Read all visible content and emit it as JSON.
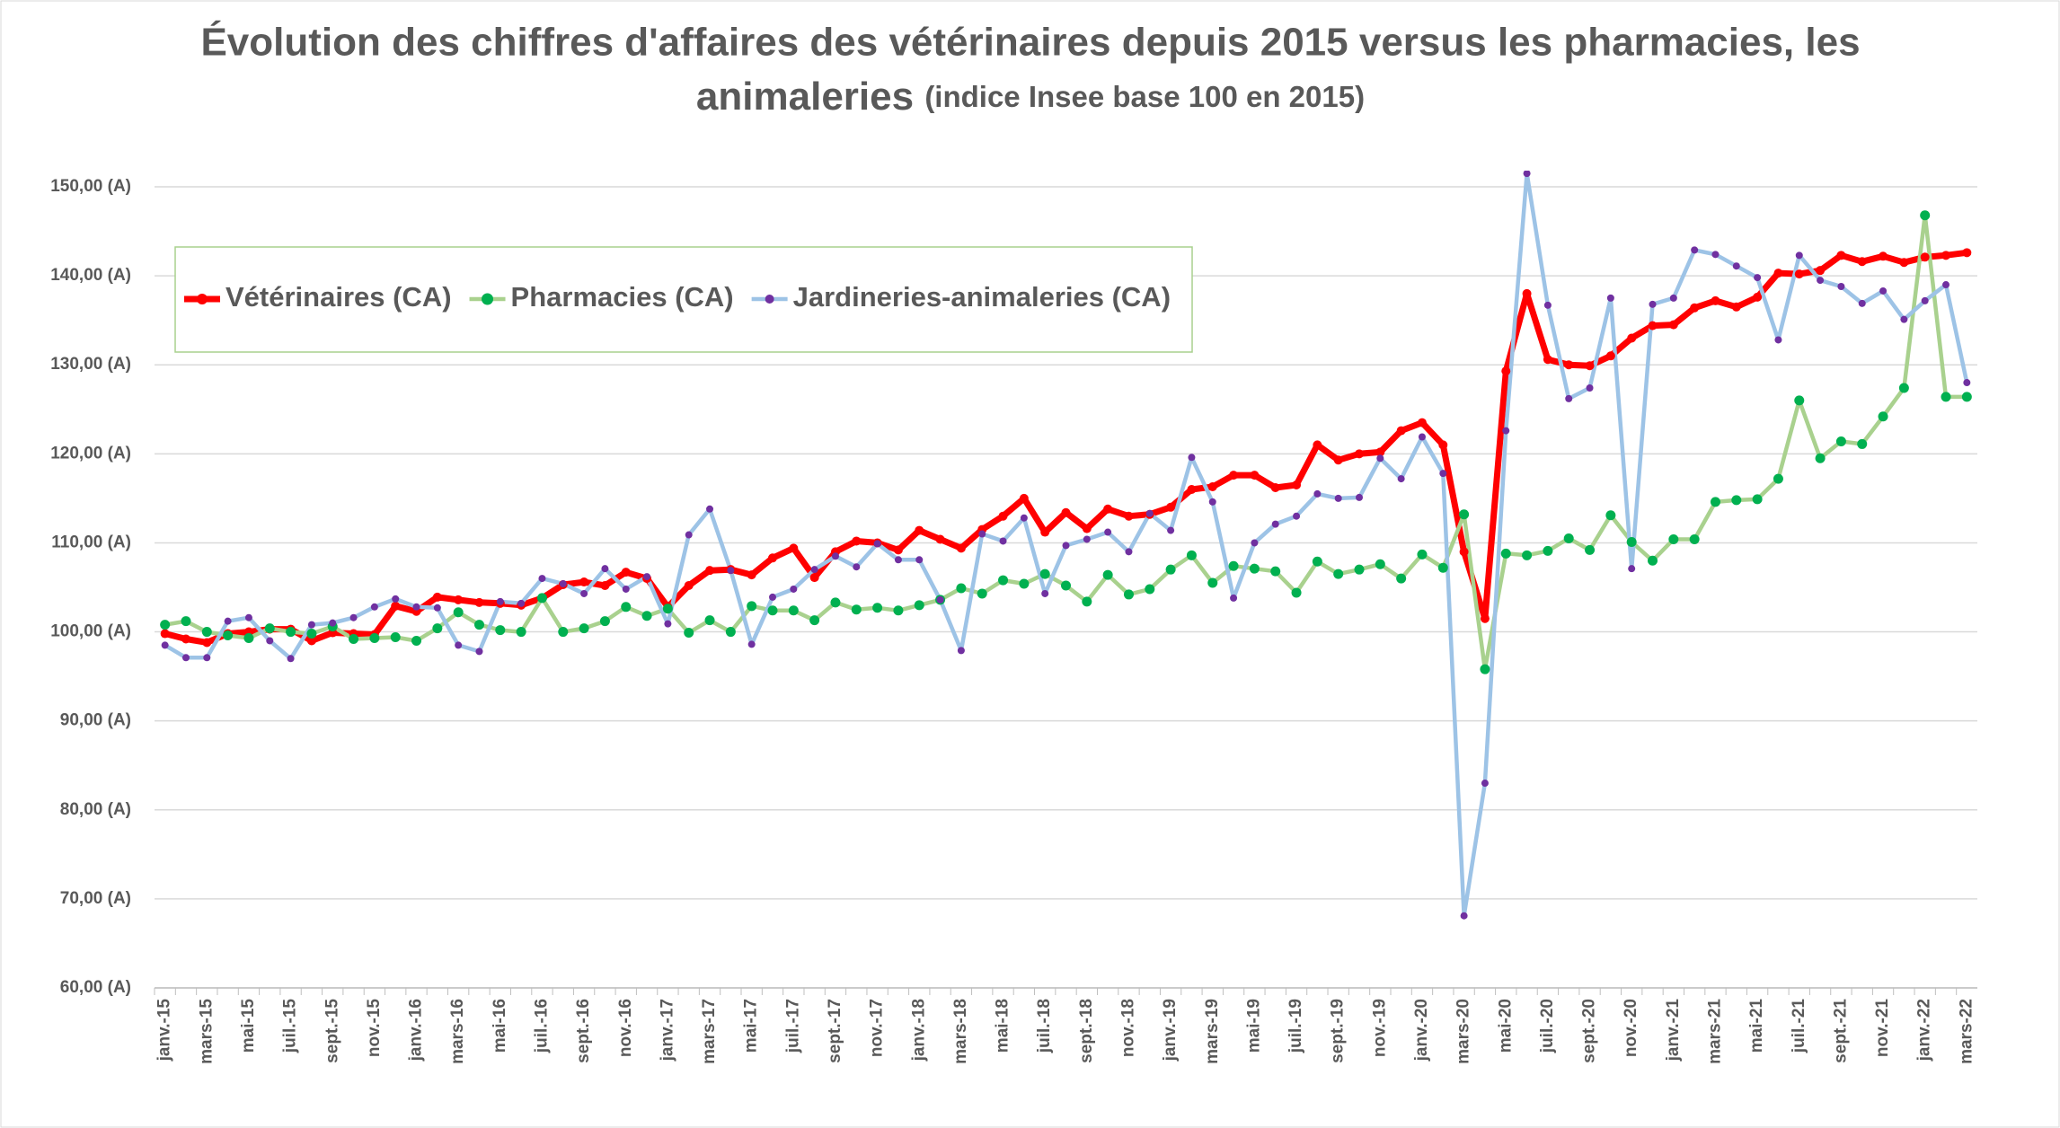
{
  "chart_data": {
    "type": "line",
    "title": [
      "Évolution des chiffres d'affaires des vétérinaires depuis 2015 versus les pharmacies, les",
      "animaleries"
    ],
    "subtitle": "(indice Insee base 100 en 2015)",
    "categories": [
      "janv.-15",
      null,
      "mars-15",
      null,
      "mai-15",
      null,
      "juil.-15",
      null,
      "sept.-15",
      null,
      "nov.-15",
      null,
      "janv.-16",
      null,
      "mars-16",
      null,
      "mai-16",
      null,
      "juil.-16",
      null,
      "sept.-16",
      null,
      "nov.-16",
      null,
      "janv.-17",
      null,
      "mars-17",
      null,
      "mai-17",
      null,
      "juil.-17",
      null,
      "sept.-17",
      null,
      "nov.-17",
      null,
      "janv.-18",
      null,
      "mars-18",
      null,
      "mai-18",
      null,
      "juil.-18",
      null,
      "sept.-18",
      null,
      "nov.-18",
      null,
      "janv.-19",
      null,
      "mars-19",
      null,
      "mai-19",
      null,
      "juil.-19",
      null,
      "sept.-19",
      null,
      "nov.-19",
      null,
      "janv.-20",
      null,
      "mars-20",
      null,
      "mai-20",
      null,
      "juil.-20",
      null,
      "sept.-20",
      null,
      "nov.-20",
      null,
      "janv.-21",
      null,
      "mars-21",
      null,
      "mai-21",
      null,
      "juil.-21",
      null,
      "sept.-21",
      null,
      "nov.-21",
      null,
      "janv.-22",
      null,
      "mars-22"
    ],
    "series": [
      {
        "name": "Vétérinaires (CA)",
        "color": "#ff0000",
        "marker_color": "#ff0000",
        "values": [
          99.8,
          99.2,
          98.8,
          99.8,
          100.0,
          100.3,
          100.3,
          99.0,
          99.9,
          99.8,
          99.7,
          102.9,
          102.3,
          103.9,
          103.6,
          103.3,
          103.2,
          103.0,
          103.8,
          105.3,
          105.6,
          105.2,
          106.7,
          106.0,
          102.8,
          105.2,
          106.9,
          107.0,
          106.4,
          108.3,
          109.4,
          106.1,
          109.0,
          110.2,
          110.0,
          109.2,
          111.4,
          110.4,
          109.4,
          111.5,
          113.0,
          115.0,
          111.2,
          113.4,
          111.6,
          113.8,
          113.0,
          113.2,
          114.0,
          116.0,
          116.3,
          117.6,
          117.6,
          116.2,
          116.5,
          121.0,
          119.3,
          120.0,
          120.2,
          122.6,
          123.5,
          121.0,
          109.0,
          101.5,
          129.3,
          138.0,
          130.6,
          130.0,
          129.9,
          131.0,
          133.0,
          134.4,
          134.5,
          136.4,
          137.2,
          136.5,
          137.6,
          140.3,
          140.2,
          140.6,
          142.3,
          141.6,
          142.2,
          141.5,
          142.1,
          142.3,
          142.6
        ]
      },
      {
        "name": "Pharmacies (CA)",
        "color": "#a9d18e",
        "marker_color": "#00b050",
        "values": [
          100.8,
          101.2,
          100.0,
          99.6,
          99.3,
          100.4,
          100.0,
          99.8,
          100.6,
          99.2,
          99.3,
          99.4,
          99.0,
          100.4,
          102.2,
          100.8,
          100.2,
          100.0,
          103.8,
          100.0,
          100.4,
          101.2,
          102.8,
          101.8,
          102.6,
          99.9,
          101.3,
          100.0,
          102.9,
          102.4,
          102.4,
          101.3,
          103.3,
          102.5,
          102.7,
          102.4,
          103.0,
          103.6,
          104.9,
          104.3,
          105.8,
          105.4,
          106.5,
          105.2,
          103.4,
          106.4,
          104.2,
          104.8,
          107.0,
          108.6,
          105.5,
          107.4,
          107.1,
          106.8,
          104.4,
          107.9,
          106.5,
          107.0,
          107.6,
          106.0,
          108.7,
          107.2,
          113.2,
          95.8,
          108.8,
          108.6,
          109.1,
          110.5,
          109.2,
          113.1,
          110.1,
          108.0,
          110.4,
          110.4,
          114.6,
          114.8,
          114.9,
          117.2,
          126.0,
          119.5,
          121.4,
          121.1,
          124.2,
          127.4,
          146.8,
          126.4,
          126.4
        ]
      },
      {
        "name": "Jardineries-animaleries (CA)",
        "color": "#9dc3e6",
        "marker_color": "#7030a0",
        "values": [
          98.5,
          97.1,
          97.1,
          101.2,
          101.6,
          99.0,
          97.0,
          100.8,
          101.0,
          101.6,
          102.8,
          103.7,
          102.8,
          102.7,
          98.5,
          97.8,
          103.4,
          103.2,
          106.0,
          105.4,
          104.3,
          107.1,
          104.8,
          106.2,
          100.9,
          110.9,
          113.8,
          106.9,
          98.6,
          103.9,
          104.8,
          107.0,
          108.5,
          107.3,
          109.9,
          108.1,
          108.1,
          103.6,
          97.9,
          111.0,
          110.2,
          112.8,
          104.3,
          109.7,
          110.4,
          111.2,
          109.0,
          113.3,
          111.4,
          119.6,
          114.6,
          103.8,
          110.0,
          112.1,
          113.0,
          115.5,
          115.0,
          115.1,
          119.5,
          117.2,
          121.9,
          117.8,
          68.1,
          83.0,
          122.6,
          151.5,
          136.7,
          126.2,
          127.4,
          137.5,
          107.1,
          136.8,
          137.5,
          142.9,
          142.4,
          141.1,
          139.8,
          132.8,
          142.3,
          139.5,
          138.8,
          136.9,
          138.3,
          135.1,
          137.2,
          139.0,
          128.0
        ]
      }
    ],
    "ylim": [
      60,
      150
    ],
    "yticks": [
      {
        "value": 60,
        "label": "60,00 (A)"
      },
      {
        "value": 70,
        "label": "70,00 (A)"
      },
      {
        "value": 80,
        "label": "80,00 (A)"
      },
      {
        "value": 90,
        "label": "90,00 (A)"
      },
      {
        "value": 100,
        "label": "100,00 (A)"
      },
      {
        "value": 110,
        "label": "110,00 (A)"
      },
      {
        "value": 120,
        "label": "120,00 (A)"
      },
      {
        "value": 130,
        "label": "130,00 (A)"
      },
      {
        "value": 140,
        "label": "140,00 (A)"
      },
      {
        "value": 150,
        "label": "150,00 (A)"
      }
    ],
    "grid": true,
    "legend": "top-left"
  }
}
